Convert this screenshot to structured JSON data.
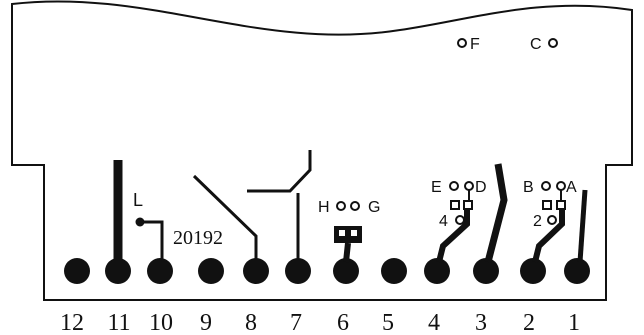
{
  "pins": [
    "12",
    "11",
    "10",
    "9",
    "8",
    "7",
    "6",
    "5",
    "4",
    "3",
    "2",
    "1"
  ],
  "labels": {
    "F": "F",
    "C": "C",
    "L": "L",
    "part_number": "20192",
    "H": "H",
    "G": "G",
    "E": "E",
    "D": "D",
    "B": "B",
    "A": "A",
    "four": "4",
    "two": "2"
  },
  "colors": {
    "ink": "#111111",
    "paper": "#ffffff"
  }
}
